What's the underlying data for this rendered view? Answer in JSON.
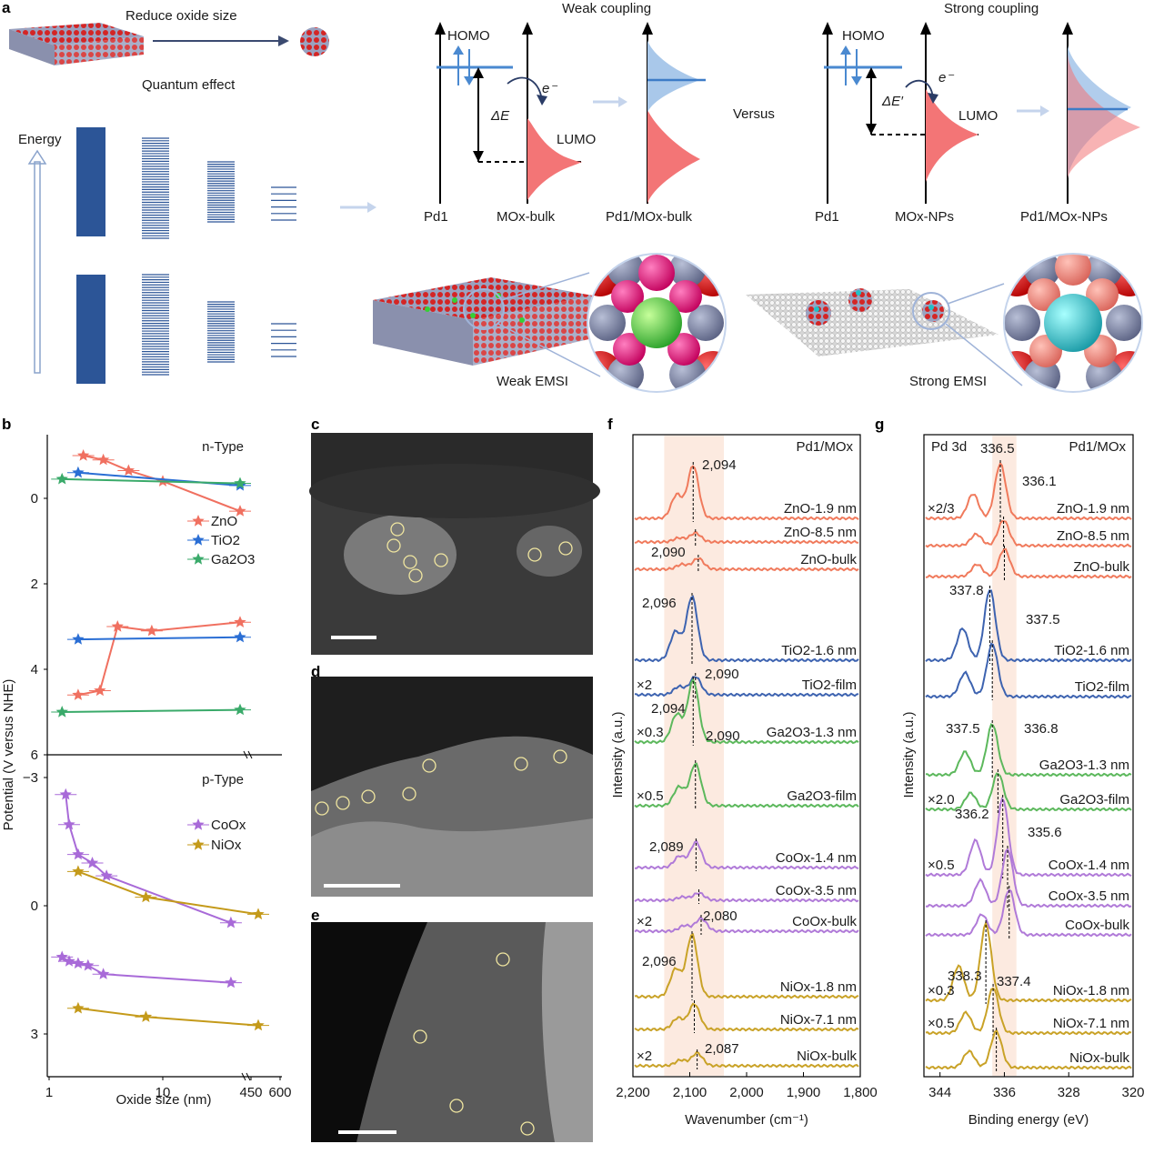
{
  "panel_letters": {
    "a": "a",
    "b": "b",
    "c": "c",
    "d": "d",
    "e": "e",
    "f": "f",
    "g": "g"
  },
  "panel_a": {
    "reduce_oxide_size": "Reduce oxide size",
    "quantum_effect": "Quantum effect",
    "energy": "Energy",
    "weak_coupling": "Weak coupling",
    "strong_coupling": "Strong coupling",
    "versus": "Versus",
    "homo": "HOMO",
    "lumo": "LUMO",
    "electron": "e⁻",
    "delta_e": "ΔE",
    "delta_e_prime": "ΔE′",
    "pd1": "Pd1",
    "mox_bulk": "MOx-bulk",
    "pd1_mox_bulk": "Pd1/MOx-bulk",
    "mox_nps": "MOx-NPs",
    "pd1_mox_nps": "Pd1/MOx-NPs",
    "weak_emsi": "Weak EMSI",
    "strong_emsi": "Strong EMSI"
  },
  "chart_data": [
    {
      "type": "scatter",
      "panel": "b",
      "ylabel": "Potential (V versus NHE)",
      "xlabel": "Oxide size (nm)",
      "xscale": "log (broken)",
      "xticks": [
        "1",
        "10",
        "450",
        "600"
      ],
      "top_title": "n-Type",
      "bottom_title": "p-Type",
      "top_yticks": [
        "0",
        "2",
        "4",
        "6"
      ],
      "bottom_yticks": [
        "−3",
        "0",
        "3"
      ],
      "series": [
        {
          "name": "ZnO",
          "color": "#f07060",
          "group": "n",
          "points": [
            [
              2.0,
              -1.0
            ],
            [
              3.0,
              -0.9
            ],
            [
              5.0,
              -0.65
            ],
            [
              10,
              -0.4
            ],
            [
              450,
              0.3
            ],
            [
              1.8,
              4.6
            ],
            [
              2.8,
              4.5
            ],
            [
              4.0,
              3.0
            ],
            [
              8,
              3.1
            ],
            [
              450,
              2.9
            ]
          ]
        },
        {
          "name": "TiO2",
          "color": "#2a6ed4",
          "group": "n",
          "points": [
            [
              1.8,
              -0.6
            ],
            [
              450,
              -0.3
            ],
            [
              1.8,
              3.3
            ],
            [
              450,
              3.25
            ]
          ]
        },
        {
          "name": "Ga2O3",
          "color": "#3aaa6a",
          "group": "n",
          "points": [
            [
              1.3,
              -0.45
            ],
            [
              450,
              -0.35
            ],
            [
              1.3,
              5.0
            ],
            [
              450,
              4.95
            ]
          ]
        },
        {
          "name": "CoOx",
          "color": "#a86ad8",
          "group": "p",
          "points": [
            [
              1.4,
              -2.6
            ],
            [
              1.5,
              -1.9
            ],
            [
              1.8,
              -1.2
            ],
            [
              2.4,
              -1.0
            ],
            [
              3.2,
              -0.7
            ],
            [
              250,
              0.4
            ],
            [
              1.3,
              1.2
            ],
            [
              1.5,
              1.3
            ],
            [
              1.8,
              1.35
            ],
            [
              2.2,
              1.4
            ],
            [
              3.0,
              1.6
            ],
            [
              250,
              1.8
            ]
          ]
        },
        {
          "name": "NiOx",
          "color": "#c49a1a",
          "group": "p",
          "points": [
            [
              1.8,
              -0.8
            ],
            [
              7.1,
              -0.2
            ],
            [
              550,
              0.2
            ],
            [
              1.8,
              2.4
            ],
            [
              7.1,
              2.6
            ],
            [
              550,
              2.8
            ]
          ]
        }
      ]
    },
    {
      "type": "line",
      "panel": "f",
      "title": "Pd1/MOx",
      "xlabel": "Wavenumber (cm⁻¹)",
      "ylabel": "Intensity (a.u.)",
      "xlim": [
        2200,
        1800
      ],
      "xticks": [
        "2,200",
        "2,100",
        "2,000",
        "1,900",
        "1,800"
      ],
      "highlight_band": [
        2145,
        2040
      ],
      "traces": [
        {
          "name": "ZnO-1.9 nm",
          "color": "#f07a5c",
          "peak": 2094,
          "mult": ""
        },
        {
          "name": "ZnO-8.5 nm",
          "color": "#f07a5c",
          "peak": 2090,
          "mult": ""
        },
        {
          "name": "ZnO-bulk",
          "color": "#f07a5c",
          "peak": 2085,
          "mult": ""
        },
        {
          "name": "TiO2-1.6 nm",
          "color": "#3d63b0",
          "peak": 2096,
          "mult": ""
        },
        {
          "name": "TiO2-film",
          "color": "#3d63b0",
          "peak": 2090,
          "mult": "×2"
        },
        {
          "name": "Ga2O3-1.3 nm",
          "color": "#5cb85c",
          "peak": 2094,
          "mult": "×0.3"
        },
        {
          "name": "Ga2O3-film",
          "color": "#5cb85c",
          "peak": 2090,
          "mult": "×0.5"
        },
        {
          "name": "CoOx-1.4 nm",
          "color": "#b07ad8",
          "peak": 2089,
          "mult": ""
        },
        {
          "name": "CoOx-3.5 nm",
          "color": "#b07ad8",
          "peak": 2084,
          "mult": ""
        },
        {
          "name": "CoOx-bulk",
          "color": "#b07ad8",
          "peak": 2080,
          "mult": "×2"
        },
        {
          "name": "NiOx-1.8 nm",
          "color": "#c9a227",
          "peak": 2096,
          "mult": ""
        },
        {
          "name": "NiOx-7.1 nm",
          "color": "#c9a227",
          "peak": 2092,
          "mult": ""
        },
        {
          "name": "NiOx-bulk",
          "color": "#c9a227",
          "peak": 2087,
          "mult": "×2"
        }
      ],
      "annotations": [
        "2,094",
        "2,090",
        "2,096",
        "2,090",
        "2,094",
        "2,090",
        "2,089",
        "2,080",
        "2,096",
        "2,087"
      ]
    },
    {
      "type": "line",
      "panel": "g",
      "title": "Pd1/MOx",
      "subtitle": "Pd 3d",
      "xlabel": "Binding energy (eV)",
      "ylabel": "Intensity (a.u.)",
      "xlim": [
        346,
        320
      ],
      "xticks": [
        "344",
        "336",
        "328",
        "320"
      ],
      "highlight_band": [
        337.5,
        334.5
      ],
      "traces": [
        {
          "name": "ZnO-1.9 nm",
          "color": "#f07a5c",
          "peak": 336.5,
          "mult": "×2/3"
        },
        {
          "name": "ZnO-8.5 nm",
          "color": "#f07a5c",
          "peak": 336.1,
          "mult": ""
        },
        {
          "name": "ZnO-bulk",
          "color": "#f07a5c",
          "peak": 336.0,
          "mult": ""
        },
        {
          "name": "TiO2-1.6 nm",
          "color": "#3d63b0",
          "peak": 337.8,
          "mult": ""
        },
        {
          "name": "TiO2-film",
          "color": "#3d63b0",
          "peak": 337.5,
          "mult": ""
        },
        {
          "name": "Ga2O3-1.3 nm",
          "color": "#5cb85c",
          "peak": 337.5,
          "mult": ""
        },
        {
          "name": "Ga2O3-film",
          "color": "#5cb85c",
          "peak": 336.8,
          "mult": "×2.0"
        },
        {
          "name": "CoOx-1.4 nm",
          "color": "#b07ad8",
          "peak": 336.2,
          "mult": "×0.5"
        },
        {
          "name": "CoOx-3.5 nm",
          "color": "#b07ad8",
          "peak": 335.6,
          "mult": ""
        },
        {
          "name": "CoOx-bulk",
          "color": "#b07ad8",
          "peak": 335.4,
          "mult": ""
        },
        {
          "name": "NiOx-1.8 nm",
          "color": "#c9a227",
          "peak": 338.3,
          "mult": "×0.3"
        },
        {
          "name": "NiOx-7.1 nm",
          "color": "#c9a227",
          "peak": 337.4,
          "mult": "×0.5"
        },
        {
          "name": "NiOx-bulk",
          "color": "#c9a227",
          "peak": 337.0,
          "mult": ""
        }
      ],
      "annotations": [
        "336.5",
        "336.1",
        "337.8",
        "337.5",
        "337.5",
        "336.8",
        "336.2",
        "335.6",
        "338.3",
        "337.4"
      ]
    }
  ]
}
